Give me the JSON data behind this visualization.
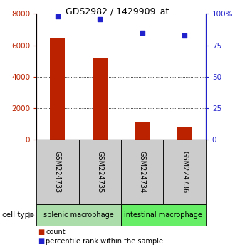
{
  "title": "GDS2982 / 1429909_at",
  "samples": [
    "GSM224733",
    "GSM224735",
    "GSM224734",
    "GSM224736"
  ],
  "counts": [
    6500,
    5200,
    1100,
    850
  ],
  "percentiles": [
    98,
    96,
    85,
    83
  ],
  "ylim_left": [
    0,
    8000
  ],
  "ylim_right": [
    0,
    100
  ],
  "yticks_left": [
    0,
    2000,
    4000,
    6000,
    8000
  ],
  "yticks_right": [
    0,
    25,
    50,
    75,
    100
  ],
  "ytick_labels_right": [
    "0",
    "25",
    "50",
    "75",
    "100%"
  ],
  "bar_color": "#bb2200",
  "dot_color": "#2222cc",
  "cell_types": [
    {
      "label": "splenic macrophage",
      "samples": [
        0,
        1
      ],
      "color": "#aaddaa"
    },
    {
      "label": "intestinal macrophage",
      "samples": [
        2,
        3
      ],
      "color": "#66ee66"
    }
  ],
  "sample_box_color": "#cccccc",
  "grid_color": "#555555",
  "cell_type_label": "cell type",
  "legend_count_label": "count",
  "legend_percentile_label": "percentile rank within the sample",
  "legend_count_color": "#bb2200",
  "legend_dot_color": "#2222cc"
}
